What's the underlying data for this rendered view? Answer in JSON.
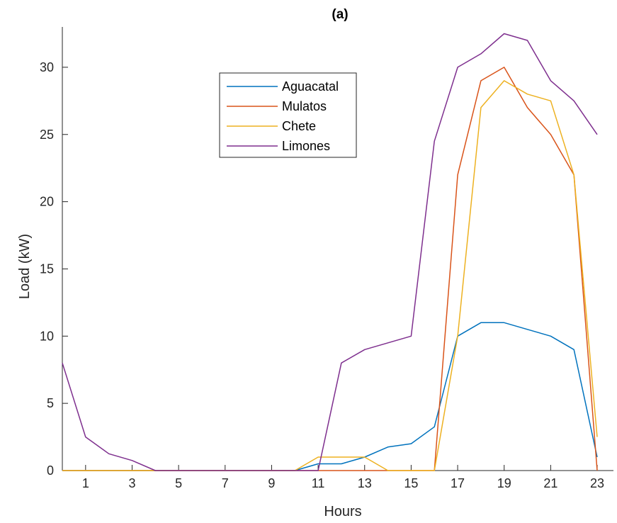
{
  "chart_data": {
    "type": "line",
    "title": "(a)",
    "xlabel": "Hours",
    "ylabel": "Load (kW)",
    "xlim": [
      0,
      23.7
    ],
    "ylim": [
      0,
      33
    ],
    "xticks": [
      1,
      3,
      5,
      7,
      9,
      11,
      13,
      15,
      17,
      19,
      21,
      23
    ],
    "yticks": [
      0,
      5,
      10,
      15,
      20,
      25,
      30
    ],
    "grid": false,
    "legend_position": "upper-center",
    "x": [
      0,
      1,
      2,
      3,
      4,
      5,
      6,
      7,
      8,
      9,
      10,
      11,
      12,
      13,
      14,
      15,
      16,
      17,
      18,
      19,
      20,
      21,
      22,
      23
    ],
    "series": [
      {
        "name": "Aguacatal",
        "color": "#0072BD",
        "values": [
          0,
          0,
          0,
          0,
          0,
          0,
          0,
          0,
          0,
          0,
          0,
          0.5,
          0.5,
          1,
          1.75,
          2,
          3.25,
          10,
          11,
          11,
          10.5,
          10,
          9,
          1
        ]
      },
      {
        "name": "Mulatos",
        "color": "#D95319",
        "values": [
          0,
          0,
          0,
          0,
          0,
          0,
          0,
          0,
          0,
          0,
          0,
          0,
          0,
          0,
          0,
          0,
          0,
          22,
          29,
          30,
          27,
          25,
          22,
          0
        ]
      },
      {
        "name": "Chete",
        "color": "#EDB120",
        "values": [
          0,
          0,
          0,
          0,
          0,
          0,
          0,
          0,
          0,
          0,
          0,
          1,
          1,
          1,
          0,
          0,
          0,
          10,
          27,
          29,
          28,
          27.5,
          22,
          2.5
        ]
      },
      {
        "name": "Limones",
        "color": "#7E2F8E",
        "values": [
          8,
          2.5,
          1.25,
          0.75,
          0,
          0,
          0,
          0,
          0,
          0,
          0,
          0,
          8,
          9,
          9.5,
          10,
          24.5,
          30,
          31,
          32.5,
          32,
          29,
          27.5,
          25
        ]
      }
    ]
  }
}
